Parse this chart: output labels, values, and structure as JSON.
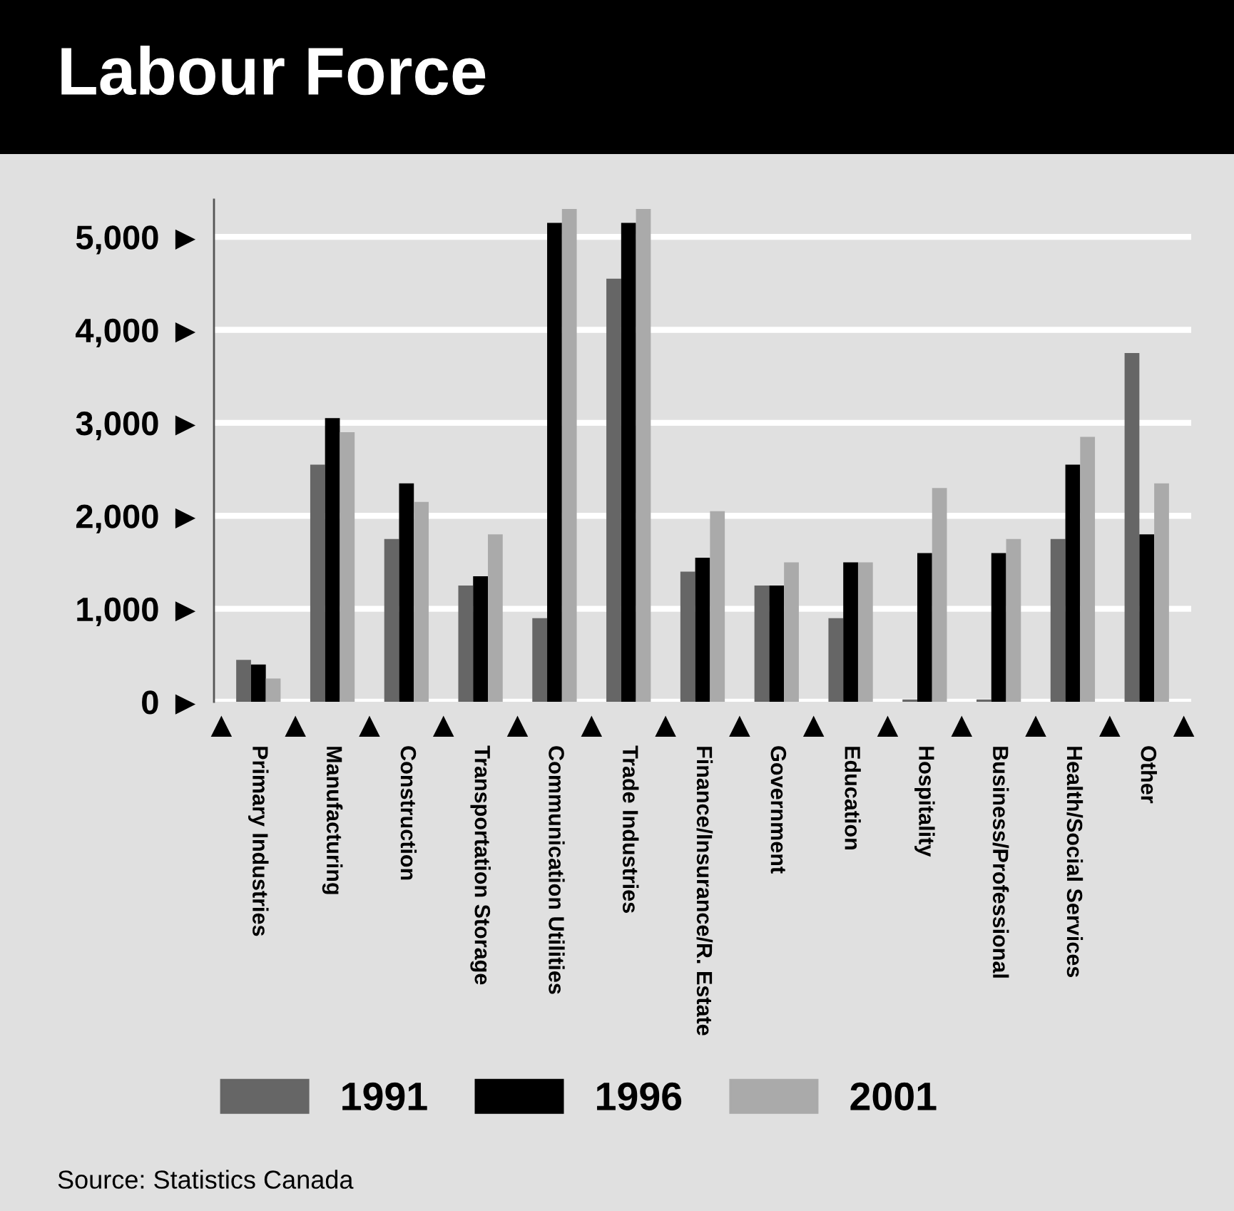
{
  "chart_data": {
    "type": "bar",
    "title": "Labour Force",
    "categories": [
      "Primary Industries",
      "Manufacturing",
      "Construction",
      "Transportation Storage",
      "Communication Utilities",
      "Trade Industries",
      "Finance/Insurance/R. Estate",
      "Government",
      "Education",
      "Hospitality",
      "Business/Professional",
      "Health/Social Services",
      "Other"
    ],
    "series": [
      {
        "name": "1991",
        "color": "#666666",
        "values": [
          450,
          2550,
          1750,
          1250,
          900,
          4550,
          1400,
          1250,
          900,
          25,
          25,
          1750,
          3750
        ]
      },
      {
        "name": "1996",
        "color": "#000000",
        "values": [
          400,
          3050,
          2350,
          1350,
          5150,
          5150,
          1550,
          1250,
          1500,
          1600,
          1600,
          2550,
          1800
        ]
      },
      {
        "name": "2001",
        "color": "#aaaaaa",
        "values": [
          250,
          2900,
          2150,
          1800,
          5300,
          5300,
          2050,
          1500,
          1500,
          2300,
          1750,
          2850,
          2350
        ]
      }
    ],
    "ylim": [
      0,
      5400
    ],
    "yticks": [
      {
        "value": 0,
        "label": "0 ►"
      },
      {
        "value": 1000,
        "label": "1,000 ►"
      },
      {
        "value": 2000,
        "label": "2,000 ►"
      },
      {
        "value": 3000,
        "label": "3,000 ►"
      },
      {
        "value": 4000,
        "label": "4,000 ►"
      },
      {
        "value": 5000,
        "label": "5,000 ►"
      }
    ],
    "grid": "y",
    "legend": "bottom",
    "annotations": [
      "Source: Statistics Canada"
    ]
  }
}
